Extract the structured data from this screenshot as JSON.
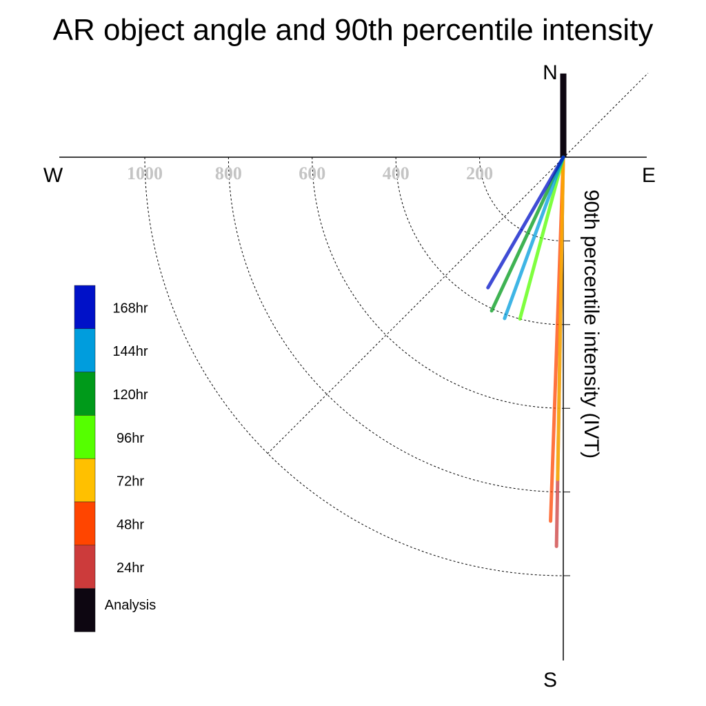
{
  "chart_data": {
    "type": "polar-vector",
    "title": "AR object angle and 90th percentile intensity",
    "axis_label": "90th percentile intensity (IVT)",
    "compass": {
      "north": "N",
      "south": "S",
      "east": "E",
      "west": "W"
    },
    "radial_ticks": [
      200,
      400,
      600,
      800,
      1000
    ],
    "radial_tick_labels": [
      "200",
      "400",
      "600",
      "800",
      "1000"
    ],
    "rmax": 1200,
    "series": [
      {
        "name": "Analysis",
        "color": "#0d0611",
        "angle_deg": 0,
        "value": 200
      },
      {
        "name": "24hr",
        "color": "#cc3b3b",
        "angle_deg": 181,
        "value": 930
      },
      {
        "name": "48hr",
        "color": "#ff4500",
        "angle_deg": 182,
        "value": 870
      },
      {
        "name": "72hr",
        "color": "#ffc000",
        "angle_deg": 181,
        "value": 770
      },
      {
        "name": "96hr",
        "color": "#55ff00",
        "angle_deg": 195,
        "value": 400
      },
      {
        "name": "120hr",
        "color": "#009a1a",
        "angle_deg": 205,
        "value": 405
      },
      {
        "name": "144hr",
        "color": "#009ddd",
        "angle_deg": 200,
        "value": 410
      },
      {
        "name": "168hr",
        "color": "#0011c8",
        "angle_deg": 210,
        "value": 360
      }
    ],
    "legend": {
      "placement": "left",
      "order": [
        "168hr",
        "144hr",
        "120hr",
        "96hr",
        "72hr",
        "48hr",
        "24hr",
        "Analysis"
      ]
    }
  }
}
